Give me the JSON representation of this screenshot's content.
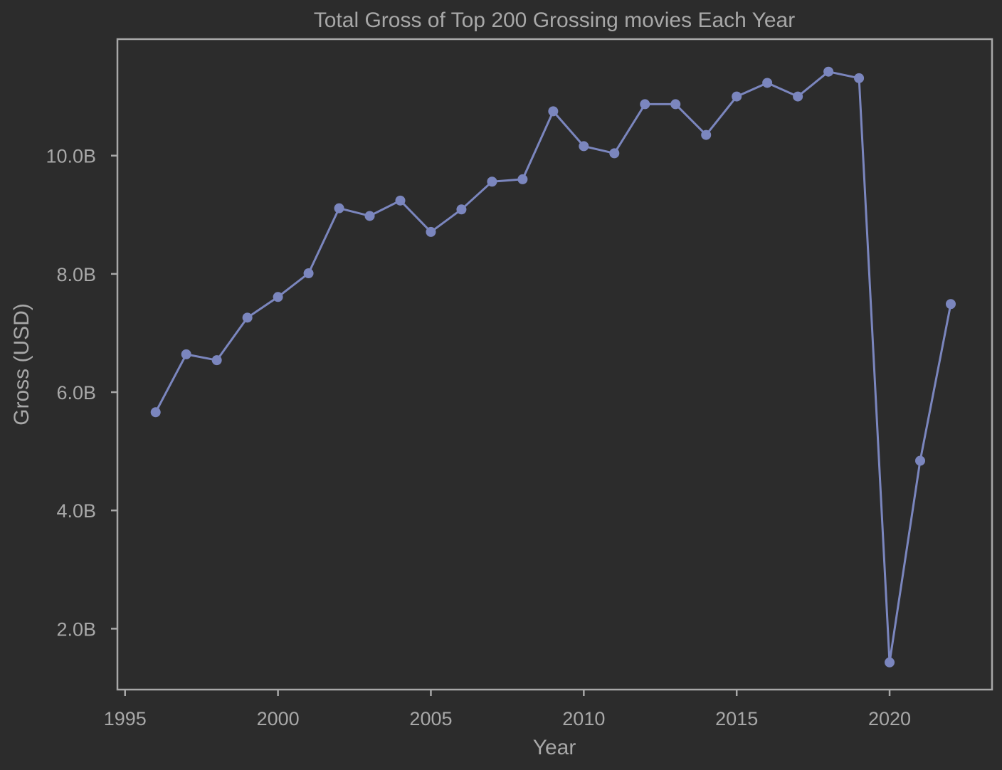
{
  "chart_data": {
    "type": "line",
    "title": "Total Gross of Top 200 Grossing movies Each Year",
    "xlabel": "Year",
    "ylabel": "Gross (USD)",
    "xlim": [
      1994.75,
      2023.35
    ],
    "ylim": [
      0.97,
      11.97
    ],
    "x_ticks": [
      1995,
      2000,
      2005,
      2010,
      2015,
      2020
    ],
    "x_tick_labels": [
      "1995",
      "2000",
      "2005",
      "2010",
      "2015",
      "2020"
    ],
    "y_ticks": [
      2,
      4,
      6,
      8,
      10
    ],
    "y_tick_labels": [
      "2.0B",
      "4.0B",
      "6.0B",
      "8.0B",
      "10.0B"
    ],
    "grid": false,
    "series": [
      {
        "color": "#7b86be",
        "x": [
          1996,
          1997,
          1998,
          1999,
          2000,
          2001,
          2002,
          2003,
          2004,
          2005,
          2006,
          2007,
          2008,
          2009,
          2010,
          2011,
          2012,
          2013,
          2014,
          2015,
          2016,
          2017,
          2018,
          2019,
          2020,
          2021,
          2022
        ],
        "values": [
          5.66,
          6.64,
          6.54,
          7.26,
          7.61,
          8.01,
          9.11,
          8.98,
          9.24,
          8.71,
          9.09,
          9.56,
          9.6,
          10.75,
          10.16,
          10.04,
          10.87,
          10.87,
          10.35,
          11.0,
          11.23,
          11.0,
          11.42,
          11.31,
          1.43,
          4.84,
          7.49
        ]
      }
    ]
  },
  "style": {
    "background": "#2c2c2c",
    "axis_color": "#a8a8a8",
    "text_color": "#a8a8a8",
    "line_color": "#7b86be"
  }
}
